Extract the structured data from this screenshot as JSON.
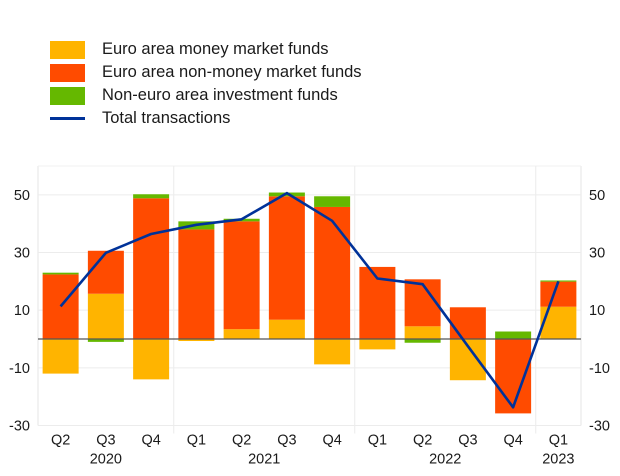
{
  "chart_data": {
    "type": "bar",
    "stacked": true,
    "title": "",
    "xlabel": "",
    "ylabel": "",
    "ylim": [
      -30,
      60
    ],
    "yticks": [
      -30,
      -10,
      10,
      30,
      50
    ],
    "ytick_labels": [
      "-30",
      "-10",
      "10",
      "30",
      "50"
    ],
    "grid": true,
    "legend_position": "top-left",
    "categories": [
      "Q2 2020",
      "Q3 2020",
      "Q4 2020",
      "Q1 2021",
      "Q2 2021",
      "Q3 2021",
      "Q4 2021",
      "Q1 2022",
      "Q2 2022",
      "Q3 2022",
      "Q4 2022",
      "Q1 2023"
    ],
    "quarter_labels": [
      "Q2",
      "Q3",
      "Q4",
      "Q1",
      "Q2",
      "Q3",
      "Q4",
      "Q1",
      "Q2",
      "Q3",
      "Q4",
      "Q1"
    ],
    "year_labels": [
      {
        "label": "2020",
        "start": 0,
        "end": 2
      },
      {
        "label": "2021",
        "start": 3,
        "end": 6
      },
      {
        "label": "2022",
        "start": 7,
        "end": 10
      },
      {
        "label": "2023",
        "start": 11,
        "end": 11
      }
    ],
    "series": [
      {
        "name": "Euro area money market funds",
        "kind": "bar",
        "color": "#FFB400",
        "values": [
          -12.0,
          15.7,
          -14.0,
          -0.7,
          3.4,
          6.7,
          -8.8,
          -3.6,
          4.4,
          -14.3,
          0.0,
          11.2
        ]
      },
      {
        "name": "Euro area non-money market funds",
        "kind": "bar",
        "color": "#FF4B00",
        "values": [
          22.4,
          14.9,
          48.8,
          38.0,
          37.4,
          42.8,
          45.8,
          25.0,
          16.3,
          11.0,
          -25.8,
          8.7
        ]
      },
      {
        "name": "Non-euro area investment funds",
        "kind": "bar",
        "color": "#65B800",
        "values": [
          0.6,
          -1.0,
          1.4,
          2.8,
          0.9,
          1.3,
          3.7,
          0.0,
          -1.3,
          0.0,
          2.6,
          0.4
        ]
      },
      {
        "name": "Total transactions",
        "kind": "line",
        "color": "#003299",
        "values": [
          11.3,
          29.9,
          36.4,
          39.6,
          41.5,
          50.6,
          41.0,
          21.0,
          19.0,
          -2.5,
          -23.7,
          20.0
        ]
      }
    ]
  }
}
